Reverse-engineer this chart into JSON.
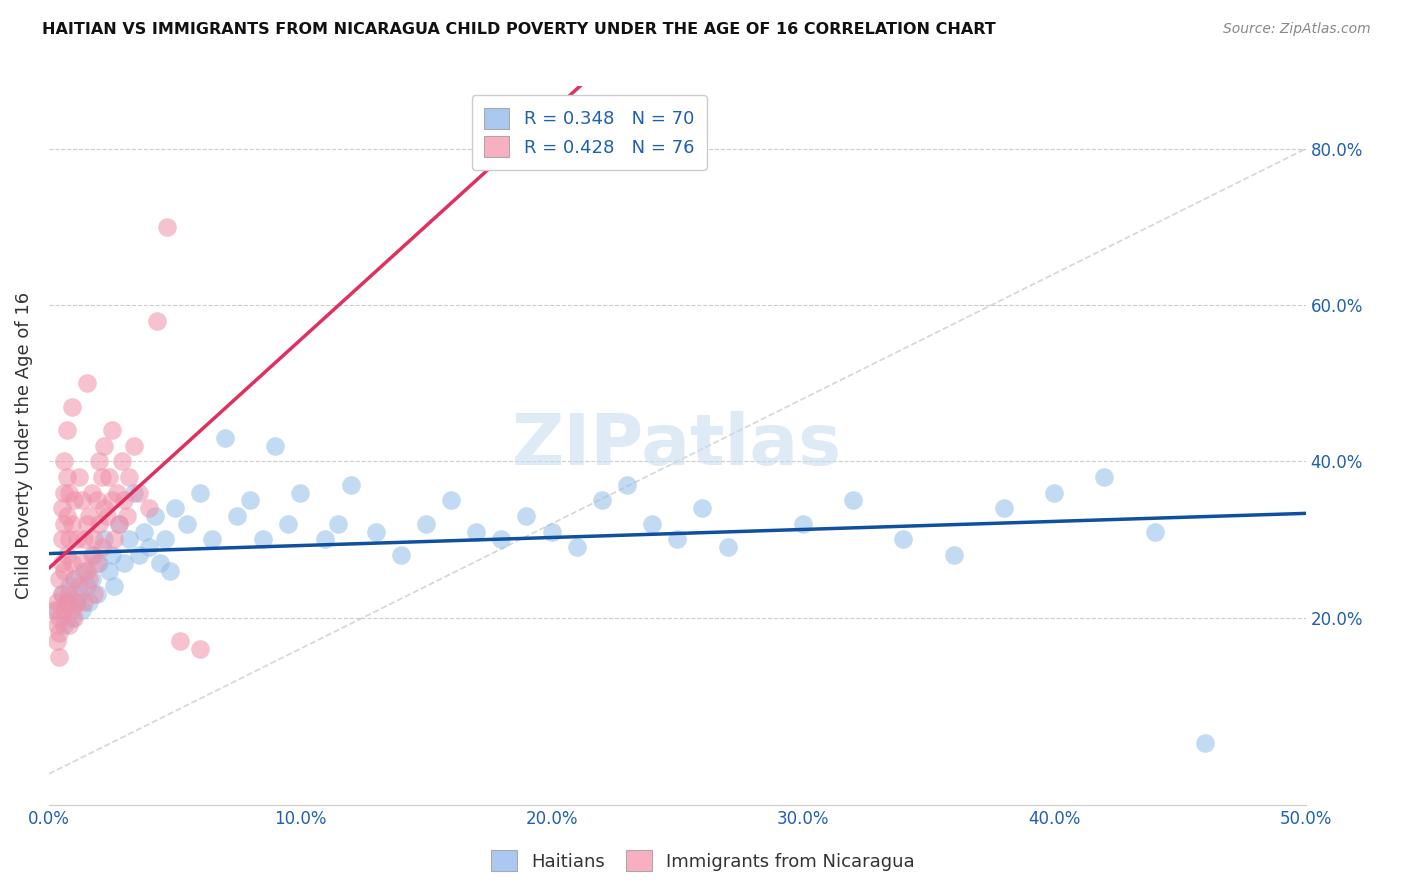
{
  "title": "HAITIAN VS IMMIGRANTS FROM NICARAGUA CHILD POVERTY UNDER THE AGE OF 16 CORRELATION CHART",
  "source": "Source: ZipAtlas.com",
  "ylabel": "Child Poverty Under the Age of 16",
  "xlabel_ticks": [
    "0.0%",
    "10.0%",
    "20.0%",
    "30.0%",
    "40.0%",
    "50.0%"
  ],
  "ylabel_ticks": [
    "20.0%",
    "40.0%",
    "60.0%",
    "80.0%"
  ],
  "xlim": [
    0.0,
    0.5
  ],
  "ylim": [
    -0.04,
    0.88
  ],
  "legend_entries": [
    {
      "label": "R = 0.348   N = 70",
      "color": "#aac8f0"
    },
    {
      "label": "R = 0.428   N = 76",
      "color": "#f8b0c0"
    }
  ],
  "bottom_legend": [
    "Haitians",
    "Immigrants from Nicaragua"
  ],
  "haitian_color": "#90bce8",
  "nicaragua_color": "#f090a8",
  "haitian_line_color": "#1050a0",
  "nicaragua_line_color": "#e03060",
  "diagonal_line_color": "#cccccc",
  "watermark_color": "#c8dcf0",
  "background_color": "#ffffff",
  "grid_color": "#cccccc",
  "haitian_scatter": [
    [
      0.003,
      0.21
    ],
    [
      0.005,
      0.23
    ],
    [
      0.006,
      0.19
    ],
    [
      0.007,
      0.22
    ],
    [
      0.008,
      0.24
    ],
    [
      0.009,
      0.2
    ],
    [
      0.01,
      0.25
    ],
    [
      0.011,
      0.22
    ],
    [
      0.012,
      0.23
    ],
    [
      0.013,
      0.21
    ],
    [
      0.014,
      0.26
    ],
    [
      0.015,
      0.24
    ],
    [
      0.016,
      0.22
    ],
    [
      0.017,
      0.25
    ],
    [
      0.018,
      0.28
    ],
    [
      0.019,
      0.23
    ],
    [
      0.02,
      0.27
    ],
    [
      0.022,
      0.3
    ],
    [
      0.024,
      0.26
    ],
    [
      0.025,
      0.28
    ],
    [
      0.026,
      0.24
    ],
    [
      0.028,
      0.32
    ],
    [
      0.03,
      0.27
    ],
    [
      0.032,
      0.3
    ],
    [
      0.034,
      0.36
    ],
    [
      0.036,
      0.28
    ],
    [
      0.038,
      0.31
    ],
    [
      0.04,
      0.29
    ],
    [
      0.042,
      0.33
    ],
    [
      0.044,
      0.27
    ],
    [
      0.046,
      0.3
    ],
    [
      0.048,
      0.26
    ],
    [
      0.05,
      0.34
    ],
    [
      0.055,
      0.32
    ],
    [
      0.06,
      0.36
    ],
    [
      0.065,
      0.3
    ],
    [
      0.07,
      0.43
    ],
    [
      0.075,
      0.33
    ],
    [
      0.08,
      0.35
    ],
    [
      0.085,
      0.3
    ],
    [
      0.09,
      0.42
    ],
    [
      0.095,
      0.32
    ],
    [
      0.1,
      0.36
    ],
    [
      0.11,
      0.3
    ],
    [
      0.115,
      0.32
    ],
    [
      0.12,
      0.37
    ],
    [
      0.13,
      0.31
    ],
    [
      0.14,
      0.28
    ],
    [
      0.15,
      0.32
    ],
    [
      0.16,
      0.35
    ],
    [
      0.17,
      0.31
    ],
    [
      0.18,
      0.3
    ],
    [
      0.19,
      0.33
    ],
    [
      0.2,
      0.31
    ],
    [
      0.21,
      0.29
    ],
    [
      0.22,
      0.35
    ],
    [
      0.23,
      0.37
    ],
    [
      0.24,
      0.32
    ],
    [
      0.25,
      0.3
    ],
    [
      0.26,
      0.34
    ],
    [
      0.27,
      0.29
    ],
    [
      0.3,
      0.32
    ],
    [
      0.32,
      0.35
    ],
    [
      0.34,
      0.3
    ],
    [
      0.36,
      0.28
    ],
    [
      0.38,
      0.34
    ],
    [
      0.4,
      0.36
    ],
    [
      0.42,
      0.38
    ],
    [
      0.44,
      0.31
    ],
    [
      0.46,
      0.04
    ]
  ],
  "nicaragua_scatter": [
    [
      0.002,
      0.21
    ],
    [
      0.003,
      0.19
    ],
    [
      0.003,
      0.17
    ],
    [
      0.003,
      0.22
    ],
    [
      0.004,
      0.2
    ],
    [
      0.004,
      0.15
    ],
    [
      0.004,
      0.25
    ],
    [
      0.004,
      0.18
    ],
    [
      0.005,
      0.23
    ],
    [
      0.005,
      0.27
    ],
    [
      0.005,
      0.3
    ],
    [
      0.005,
      0.34
    ],
    [
      0.006,
      0.21
    ],
    [
      0.006,
      0.26
    ],
    [
      0.006,
      0.32
    ],
    [
      0.006,
      0.36
    ],
    [
      0.006,
      0.4
    ],
    [
      0.007,
      0.22
    ],
    [
      0.007,
      0.28
    ],
    [
      0.007,
      0.33
    ],
    [
      0.007,
      0.38
    ],
    [
      0.007,
      0.44
    ],
    [
      0.008,
      0.19
    ],
    [
      0.008,
      0.23
    ],
    [
      0.008,
      0.3
    ],
    [
      0.008,
      0.36
    ],
    [
      0.009,
      0.21
    ],
    [
      0.009,
      0.27
    ],
    [
      0.009,
      0.32
    ],
    [
      0.009,
      0.47
    ],
    [
      0.01,
      0.2
    ],
    [
      0.01,
      0.25
    ],
    [
      0.01,
      0.35
    ],
    [
      0.011,
      0.22
    ],
    [
      0.011,
      0.3
    ],
    [
      0.012,
      0.24
    ],
    [
      0.012,
      0.38
    ],
    [
      0.013,
      0.27
    ],
    [
      0.013,
      0.35
    ],
    [
      0.014,
      0.22
    ],
    [
      0.014,
      0.3
    ],
    [
      0.015,
      0.26
    ],
    [
      0.015,
      0.32
    ],
    [
      0.015,
      0.5
    ],
    [
      0.016,
      0.25
    ],
    [
      0.016,
      0.33
    ],
    [
      0.017,
      0.28
    ],
    [
      0.017,
      0.36
    ],
    [
      0.018,
      0.23
    ],
    [
      0.018,
      0.3
    ],
    [
      0.019,
      0.27
    ],
    [
      0.019,
      0.35
    ],
    [
      0.02,
      0.32
    ],
    [
      0.02,
      0.4
    ],
    [
      0.021,
      0.29
    ],
    [
      0.021,
      0.38
    ],
    [
      0.022,
      0.34
    ],
    [
      0.022,
      0.42
    ],
    [
      0.023,
      0.33
    ],
    [
      0.024,
      0.38
    ],
    [
      0.025,
      0.35
    ],
    [
      0.025,
      0.44
    ],
    [
      0.026,
      0.3
    ],
    [
      0.027,
      0.36
    ],
    [
      0.028,
      0.32
    ],
    [
      0.029,
      0.4
    ],
    [
      0.03,
      0.35
    ],
    [
      0.031,
      0.33
    ],
    [
      0.032,
      0.38
    ],
    [
      0.034,
      0.42
    ],
    [
      0.036,
      0.36
    ],
    [
      0.04,
      0.34
    ],
    [
      0.043,
      0.58
    ],
    [
      0.047,
      0.7
    ],
    [
      0.052,
      0.17
    ],
    [
      0.06,
      0.16
    ]
  ]
}
